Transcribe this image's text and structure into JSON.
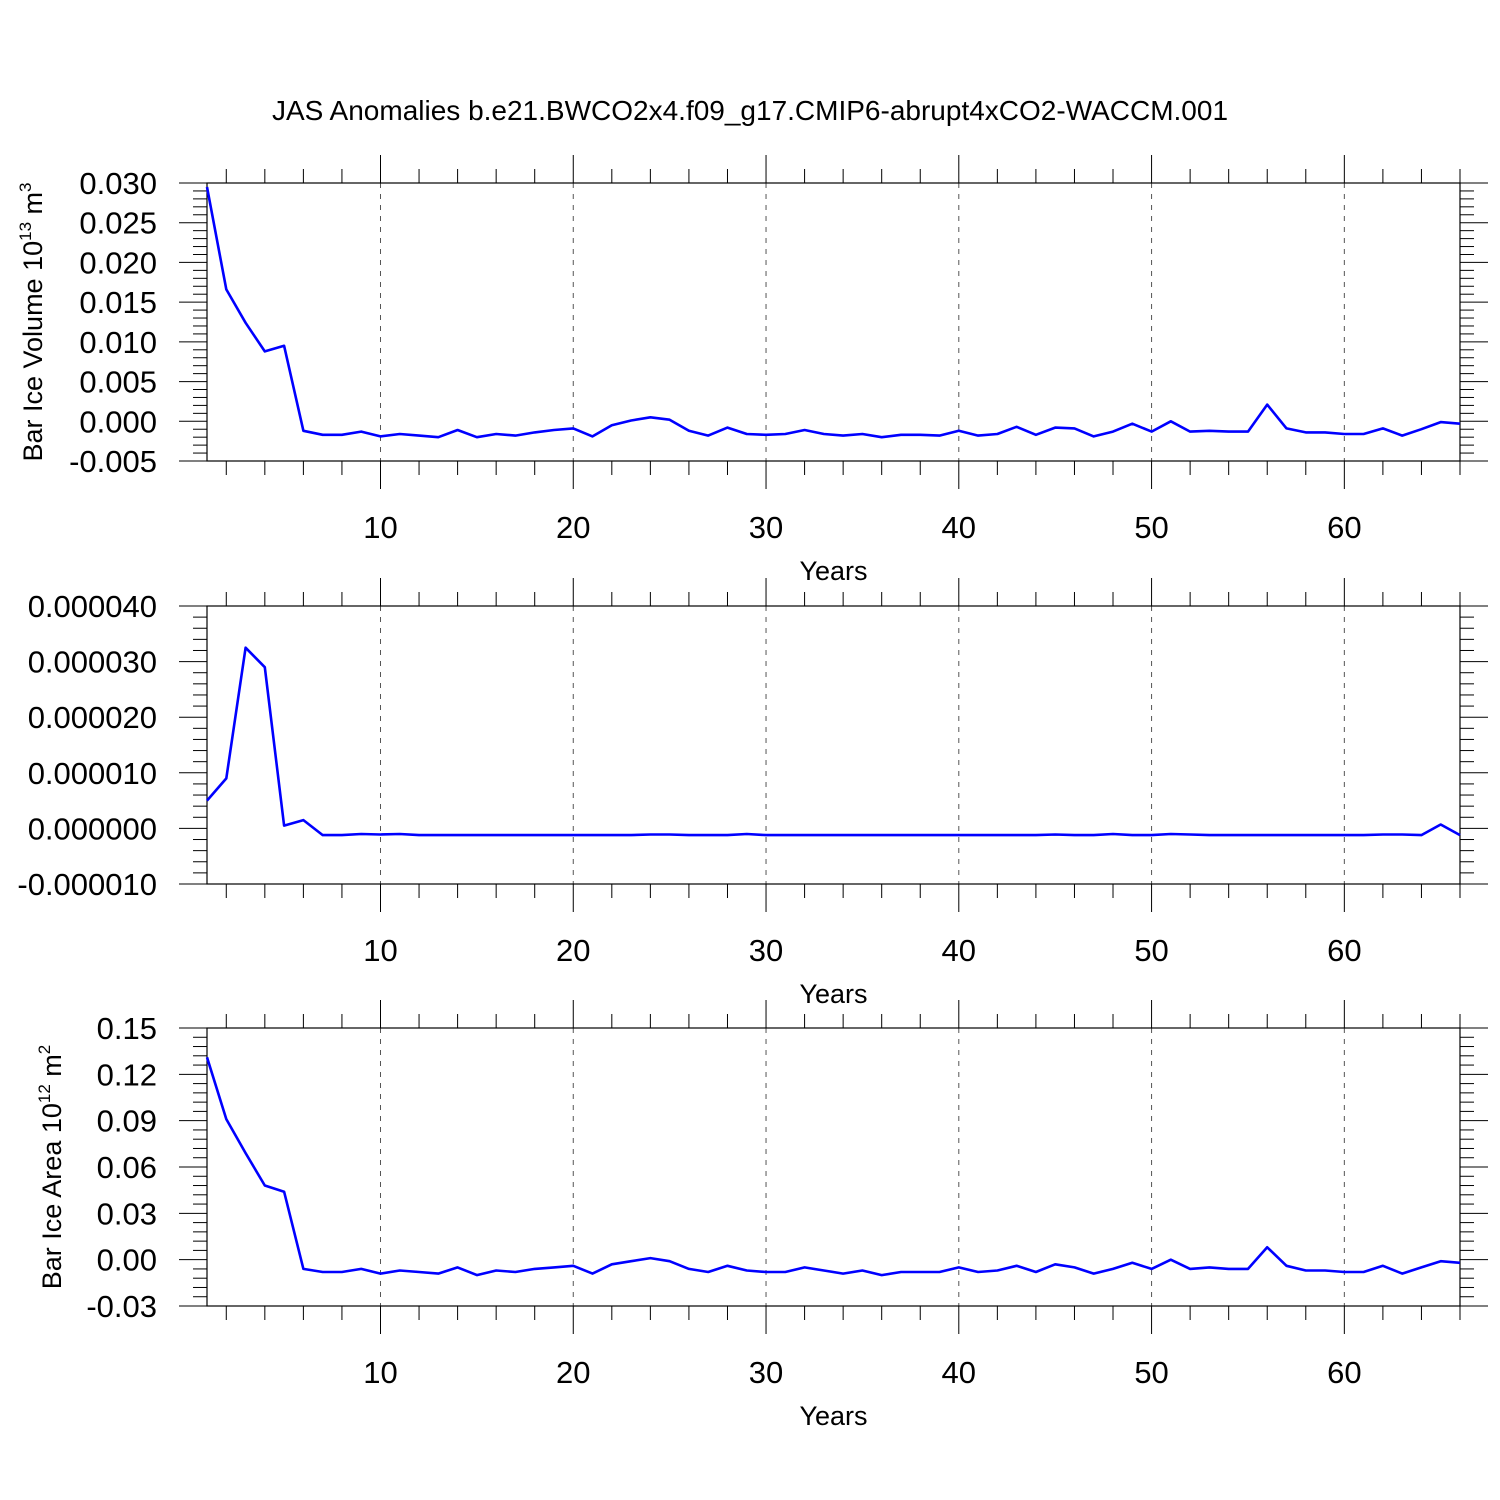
{
  "title": "JAS Anomalies b.e21.BWCO2x4.f09_g17.CMIP6-abrupt4xCO2-WACCM.001",
  "colors": {
    "line": "#0000ff",
    "axes": "#000000",
    "grid": "#555555",
    "background": "#ffffff"
  },
  "chart_data": [
    {
      "type": "line",
      "xlabel": "Years",
      "ylabel": {
        "main": "Bar Ice Volume 10",
        "exponent": "13",
        "unit": " m",
        "unit_exponent": "3"
      },
      "xlim": [
        1,
        66
      ],
      "ylim": [
        -0.005,
        0.03
      ],
      "xticks": [
        10,
        20,
        30,
        40,
        50,
        60
      ],
      "yticks": [
        "0.030",
        "0.025",
        "0.020",
        "0.015",
        "0.010",
        "0.005",
        "0.000",
        "-0.005"
      ],
      "grid": "vertical dashed at major x ticks",
      "series": [
        {
          "values": [
            0.0295,
            0.0166,
            0.0124,
            0.0088,
            0.0095,
            -0.0012,
            -0.0017,
            -0.0017,
            -0.0013,
            -0.0019,
            -0.0016,
            -0.0018,
            -0.002,
            -0.0011,
            -0.002,
            -0.0016,
            -0.0018,
            -0.0014,
            -0.0011,
            -0.0009,
            -0.0019,
            -0.0005,
            0.0001,
            0.0005,
            0.0002,
            -0.0012,
            -0.0018,
            -0.0008,
            -0.0016,
            -0.0017,
            -0.0016,
            -0.0011,
            -0.0016,
            -0.0018,
            -0.0016,
            -0.002,
            -0.0017,
            -0.0017,
            -0.0018,
            -0.0012,
            -0.0018,
            -0.0016,
            -0.0007,
            -0.0017,
            -0.0008,
            -0.0009,
            -0.0019,
            -0.0013,
            -0.0003,
            -0.0013,
            0.0,
            -0.0013,
            -0.0012,
            -0.0013,
            -0.0013,
            0.0021,
            -0.0009,
            -0.0014,
            -0.0014,
            -0.0016,
            -0.0016,
            -0.0009,
            -0.0018,
            -0.001,
            -0.0001,
            -0.0003
          ]
        }
      ]
    },
    {
      "type": "line",
      "xlabel": "Years",
      "ylabel": null,
      "xlim": [
        1,
        66
      ],
      "ylim": [
        -1e-05,
        4e-05
      ],
      "xticks": [
        10,
        20,
        30,
        40,
        50,
        60
      ],
      "yticks": [
        "0.000040",
        "0.000030",
        "0.000020",
        "0.000010",
        "0.000000",
        "-0.000010"
      ],
      "grid": "vertical dashed at major x ticks",
      "series": [
        {
          "values": [
            5e-06,
            9e-06,
            3.25e-05,
            2.9e-05,
            5e-07,
            1.5e-06,
            -1.2e-06,
            -1.2e-06,
            -1e-06,
            -1.1e-06,
            -1e-06,
            -1.2e-06,
            -1.2e-06,
            -1.2e-06,
            -1.2e-06,
            -1.2e-06,
            -1.2e-06,
            -1.2e-06,
            -1.2e-06,
            -1.2e-06,
            -1.2e-06,
            -1.2e-06,
            -1.2e-06,
            -1.1e-06,
            -1.1e-06,
            -1.2e-06,
            -1.2e-06,
            -1.2e-06,
            -1e-06,
            -1.2e-06,
            -1.2e-06,
            -1.2e-06,
            -1.2e-06,
            -1.2e-06,
            -1.2e-06,
            -1.2e-06,
            -1.2e-06,
            -1.2e-06,
            -1.2e-06,
            -1.2e-06,
            -1.2e-06,
            -1.2e-06,
            -1.2e-06,
            -1.2e-06,
            -1.1e-06,
            -1.2e-06,
            -1.2e-06,
            -1e-06,
            -1.2e-06,
            -1.2e-06,
            -1e-06,
            -1.1e-06,
            -1.2e-06,
            -1.2e-06,
            -1.2e-06,
            -1.2e-06,
            -1.2e-06,
            -1.2e-06,
            -1.2e-06,
            -1.2e-06,
            -1.2e-06,
            -1.1e-06,
            -1.1e-06,
            -1.2e-06,
            7e-07,
            -1.2e-06
          ]
        }
      ]
    },
    {
      "type": "line",
      "xlabel": "Years",
      "ylabel": {
        "main": "Bar Ice Area 10",
        "exponent": "12",
        "unit": " m",
        "unit_exponent": "2"
      },
      "xlim": [
        1,
        66
      ],
      "ylim": [
        -0.03,
        0.15
      ],
      "xticks": [
        10,
        20,
        30,
        40,
        50,
        60
      ],
      "yticks": [
        "0.15",
        "0.12",
        "0.09",
        "0.06",
        "0.03",
        "0.00",
        "-0.03"
      ],
      "grid": "vertical dashed at major x ticks",
      "series": [
        {
          "values": [
            0.131,
            0.091,
            0.069,
            0.048,
            0.044,
            -0.006,
            -0.008,
            -0.008,
            -0.006,
            -0.009,
            -0.007,
            -0.008,
            -0.009,
            -0.005,
            -0.01,
            -0.007,
            -0.008,
            -0.006,
            -0.005,
            -0.004,
            -0.009,
            -0.003,
            -0.001,
            0.001,
            -0.001,
            -0.006,
            -0.008,
            -0.004,
            -0.007,
            -0.008,
            -0.008,
            -0.005,
            -0.007,
            -0.009,
            -0.007,
            -0.01,
            -0.008,
            -0.008,
            -0.008,
            -0.005,
            -0.008,
            -0.007,
            -0.004,
            -0.008,
            -0.003,
            -0.005,
            -0.009,
            -0.006,
            -0.002,
            -0.006,
            0.0,
            -0.006,
            -0.005,
            -0.006,
            -0.006,
            0.008,
            -0.004,
            -0.007,
            -0.007,
            -0.008,
            -0.008,
            -0.004,
            -0.009,
            -0.005,
            -0.001,
            -0.002
          ]
        }
      ]
    }
  ]
}
